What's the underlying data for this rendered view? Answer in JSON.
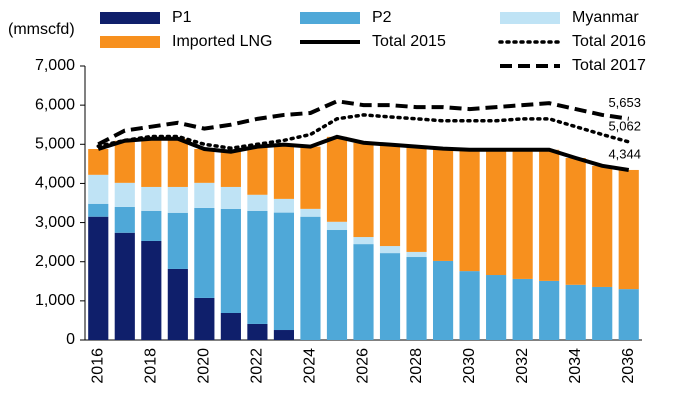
{
  "chart_data": {
    "type": "bar",
    "stacked": true,
    "y_label": "(mmscfd)",
    "categories": [
      "2016",
      null,
      "2018",
      null,
      "2020",
      null,
      "2022",
      null,
      "2024",
      null,
      "2026",
      null,
      "2028",
      null,
      "2030",
      null,
      "2032",
      null,
      "2034",
      null,
      "2036"
    ],
    "ylim": [
      0,
      7000
    ],
    "yticks": [
      0,
      {
        "value": 1000,
        "label": "1,000"
      },
      {
        "value": 2000,
        "label": "2,000"
      },
      {
        "value": 3000,
        "label": "3,000"
      },
      {
        "value": 4000,
        "label": "4,000"
      },
      {
        "value": 5000,
        "label": "5,000"
      },
      {
        "value": 6000,
        "label": "6,000"
      },
      {
        "value": 7000,
        "label": "7,000"
      }
    ],
    "grid": false,
    "series": [
      {
        "name": "P1",
        "type": "bar",
        "color": "#0f1f6b",
        "values": [
          3150,
          2740,
          2530,
          1815,
          1075,
          690,
          410,
          255,
          0,
          0,
          0,
          0,
          0,
          0,
          0,
          0,
          0,
          0,
          0,
          0,
          0
        ]
      },
      {
        "name": "P2",
        "type": "bar",
        "color": "#4fa8d8",
        "values": [
          330,
          660,
          770,
          1435,
          2300,
          2660,
          2890,
          3000,
          3150,
          2810,
          2450,
          2220,
          2120,
          2020,
          1760,
          1660,
          1560,
          1510,
          1410,
          1355,
          1300
        ]
      },
      {
        "name": "Myanmar",
        "type": "bar",
        "color": "#bfe3f5",
        "values": [
          740,
          615,
          610,
          660,
          640,
          560,
          410,
          350,
          200,
          210,
          180,
          180,
          130,
          0,
          0,
          0,
          0,
          0,
          0,
          0,
          0
        ]
      },
      {
        "name": "Imported LNG",
        "type": "bar",
        "color": "#f7901e",
        "values": [
          660,
          1075,
          1230,
          1230,
          865,
          900,
          1230,
          1390,
          1590,
          2170,
          2410,
          2590,
          2690,
          2870,
          3100,
          3200,
          3300,
          3350,
          3240,
          3095,
          3044
        ]
      },
      {
        "name": "Total 2015",
        "type": "line",
        "dash": "solid",
        "color": "#000000",
        "values": [
          4880,
          5090,
          5140,
          5140,
          4880,
          4810,
          4940,
          4990,
          4940,
          5190,
          5040,
          4990,
          4940,
          4890,
          4860,
          4860,
          4860,
          4860,
          4650,
          4450,
          4344
        ],
        "value_labels": [
          null,
          null,
          null,
          null,
          null,
          null,
          null,
          null,
          null,
          null,
          null,
          null,
          null,
          null,
          null,
          null,
          null,
          null,
          null,
          null,
          "4,344"
        ]
      },
      {
        "name": "Total 2016",
        "type": "line",
        "dash": "dotted",
        "color": "#000000",
        "values": [
          4950,
          5100,
          5200,
          5200,
          5000,
          4900,
          5000,
          5100,
          5250,
          5650,
          5750,
          5700,
          5650,
          5600,
          5600,
          5600,
          5650,
          5650,
          5450,
          5250,
          5062
        ],
        "value_labels": [
          null,
          null,
          null,
          null,
          null,
          null,
          null,
          null,
          null,
          null,
          null,
          null,
          null,
          null,
          null,
          null,
          null,
          null,
          null,
          null,
          "5,062"
        ]
      },
      {
        "name": "Total 2017",
        "type": "line",
        "dash": "dashed",
        "color": "#000000",
        "values": [
          5000,
          5350,
          5450,
          5550,
          5400,
          5500,
          5650,
          5750,
          5800,
          6100,
          6000,
          6000,
          5950,
          5950,
          5900,
          5950,
          6000,
          6050,
          5900,
          5750,
          5653
        ],
        "value_labels": [
          null,
          null,
          null,
          null,
          null,
          null,
          null,
          null,
          null,
          null,
          null,
          null,
          null,
          null,
          null,
          null,
          null,
          null,
          null,
          null,
          "5,653"
        ]
      }
    ]
  }
}
